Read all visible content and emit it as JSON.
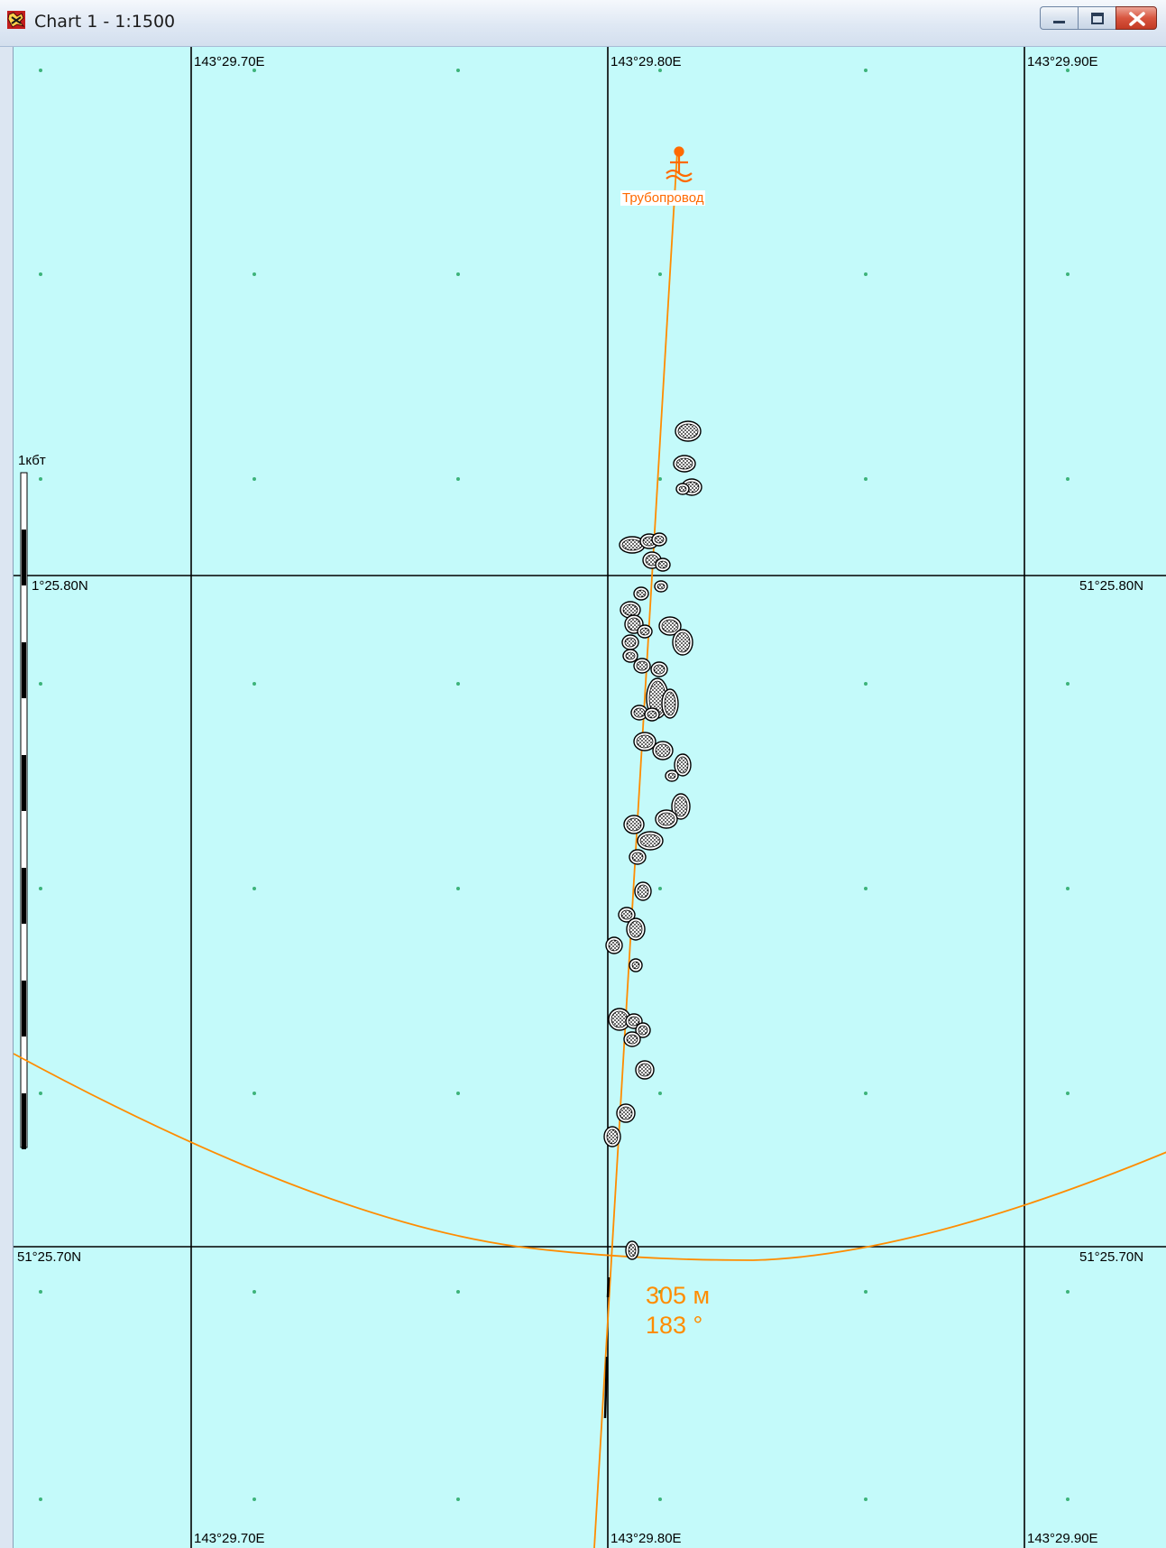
{
  "window": {
    "title": "Chart 1 - 1:1500",
    "icon": "chart-app-icon",
    "controls": [
      "minimize-icon",
      "maximize-icon",
      "close-icon"
    ]
  },
  "chart": {
    "lon_labels": [
      "143°29.70E",
      "143°29.80E",
      "143°29.90E"
    ],
    "lat_labels": [
      "51°25.80N",
      "51°25.70N"
    ],
    "lat_label_partial": "1°25.80N",
    "scale_bar_label": "1кбт",
    "pipeline_label": "Трубопровод",
    "distance": "305 м",
    "bearing": "183 °",
    "colors": {
      "sea": "#c4fafa",
      "grid": "#000000",
      "route": "#ff8c00",
      "object": "#ff6a00",
      "dots": "#3db37a"
    }
  }
}
